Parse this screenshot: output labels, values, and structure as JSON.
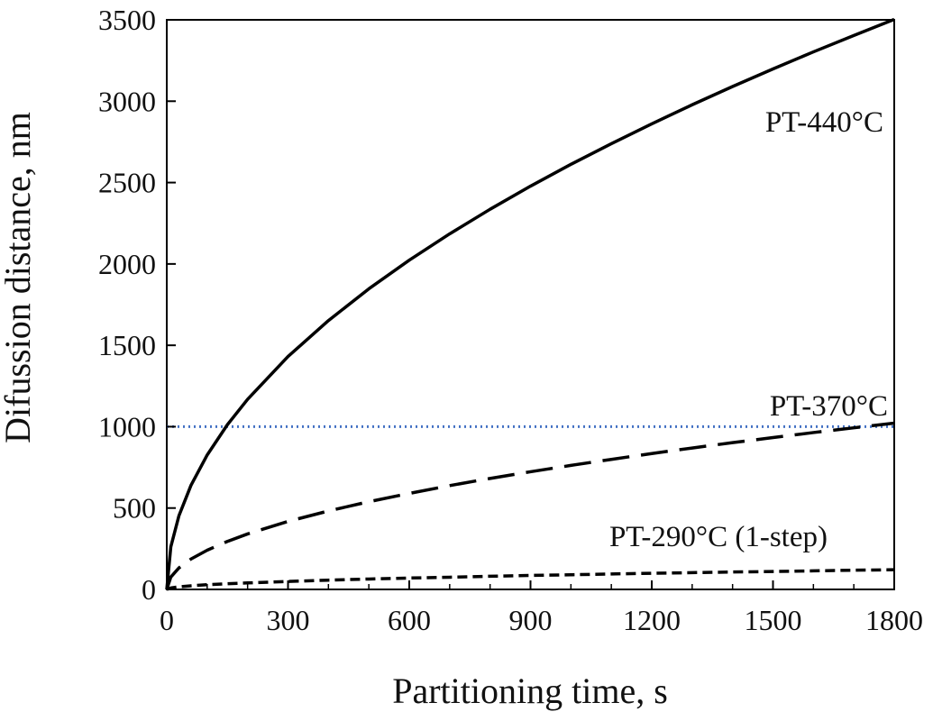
{
  "chart_data": {
    "type": "line",
    "title": "",
    "xlabel": "Partitioning time, s",
    "ylabel": "Difussion distance, nm",
    "xlim": [
      0,
      1800
    ],
    "ylim": [
      0,
      3500
    ],
    "x_ticks": [
      "0",
      "300",
      "600",
      "900",
      "1200",
      "1500",
      "1800"
    ],
    "y_ticks": [
      "0",
      "500",
      "1000",
      "1500",
      "2000",
      "2500",
      "3000",
      "3500"
    ],
    "x_tick_values": [
      0,
      300,
      600,
      900,
      1200,
      1500,
      1800
    ],
    "y_tick_values": [
      0,
      500,
      1000,
      1500,
      2000,
      2500,
      3000,
      3500
    ],
    "grid": false,
    "series": [
      {
        "name": "PT-440°C",
        "style": "solid",
        "color": "#000000",
        "x": [
          0,
          10,
          30,
          60,
          100,
          150,
          200,
          300,
          400,
          500,
          600,
          700,
          800,
          900,
          1000,
          1100,
          1200,
          1300,
          1400,
          1500,
          1600,
          1700,
          1800
        ],
        "values": [
          0,
          261,
          452,
          640,
          826,
          1012,
          1168,
          1431,
          1652,
          1847,
          2023,
          2185,
          2336,
          2478,
          2612,
          2739,
          2861,
          2978,
          3090,
          3198,
          3303,
          3404,
          3503
        ]
      },
      {
        "name": "PT-370°C",
        "style": "long-dash",
        "color": "#000000",
        "x": [
          0,
          10,
          30,
          60,
          100,
          150,
          200,
          300,
          400,
          500,
          600,
          700,
          800,
          900,
          1000,
          1100,
          1200,
          1300,
          1400,
          1500,
          1600,
          1700,
          1800
        ],
        "values": [
          0,
          76,
          132,
          187,
          241,
          295,
          341,
          418,
          482,
          539,
          590,
          638,
          682,
          723,
          762,
          799,
          835,
          869,
          902,
          933,
          964,
          993,
          1022
        ]
      },
      {
        "name": "PT-290°C (1-step)",
        "style": "short-dash",
        "color": "#000000",
        "x": [
          0,
          10,
          30,
          60,
          100,
          150,
          200,
          300,
          400,
          500,
          600,
          700,
          800,
          900,
          1000,
          1100,
          1200,
          1300,
          1400,
          1500,
          1600,
          1700,
          1800
        ],
        "values": [
          0,
          9,
          16,
          22,
          29,
          35,
          40,
          49,
          57,
          64,
          70,
          75,
          81,
          86,
          90,
          95,
          99,
          103,
          107,
          110,
          114,
          118,
          121
        ]
      }
    ],
    "reference_lines": [
      {
        "orientation": "horizontal",
        "value": 1000,
        "style": "dotted",
        "color": "#4472C4"
      }
    ],
    "annotations": [
      {
        "text": "PT-440°C",
        "series": "PT-440°C"
      },
      {
        "text": "PT-370°C",
        "series": "PT-370°C"
      },
      {
        "text": "PT-290°C (1-step)",
        "series": "PT-290°C (1-step)"
      }
    ]
  }
}
